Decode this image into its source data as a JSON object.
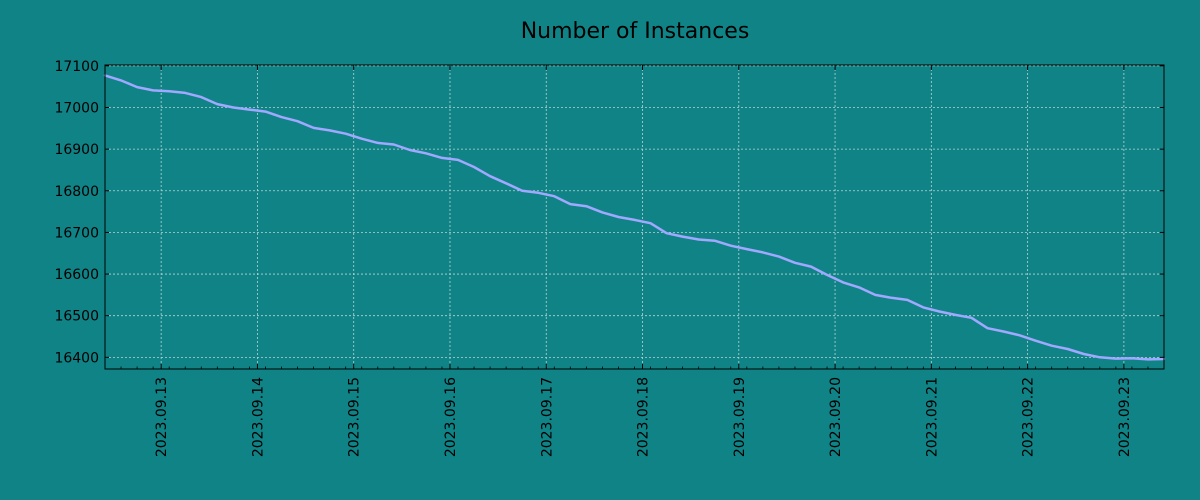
{
  "chart_data": {
    "type": "line",
    "title": "Number of Instances",
    "xlabel": "",
    "ylabel": "",
    "x_ticks": [
      "2023.09.13",
      "2023.09.14",
      "2023.09.15",
      "2023.09.16",
      "2023.09.17",
      "2023.09.18",
      "2023.09.19",
      "2023.09.20",
      "2023.09.21",
      "2023.09.22",
      "2023.09.23"
    ],
    "y_ticks": [
      16400,
      16500,
      16600,
      16700,
      16800,
      16900,
      17000,
      17100
    ],
    "xlim": [
      "2023-09-12 10:00",
      "2023-09-23 10:00"
    ],
    "ylim": [
      16372,
      17102
    ],
    "grid": true,
    "series": [
      {
        "color": "#a0a8ff",
        "x": [
          "2023-09-12 10:00",
          "2023-09-12 14:00",
          "2023-09-12 18:00",
          "2023-09-12 22:00",
          "2023-09-13 02:00",
          "2023-09-13 06:00",
          "2023-09-13 10:00",
          "2023-09-13 14:00",
          "2023-09-13 18:00",
          "2023-09-13 22:00",
          "2023-09-14 02:00",
          "2023-09-14 06:00",
          "2023-09-14 10:00",
          "2023-09-14 14:00",
          "2023-09-14 18:00",
          "2023-09-14 22:00",
          "2023-09-15 02:00",
          "2023-09-15 06:00",
          "2023-09-15 10:00",
          "2023-09-15 14:00",
          "2023-09-15 18:00",
          "2023-09-15 22:00",
          "2023-09-16 02:00",
          "2023-09-16 06:00",
          "2023-09-16 10:00",
          "2023-09-16 14:00",
          "2023-09-16 18:00",
          "2023-09-16 22:00",
          "2023-09-17 02:00",
          "2023-09-17 06:00",
          "2023-09-17 10:00",
          "2023-09-17 14:00",
          "2023-09-17 18:00",
          "2023-09-17 22:00",
          "2023-09-18 02:00",
          "2023-09-18 06:00",
          "2023-09-18 10:00",
          "2023-09-18 14:00",
          "2023-09-18 18:00",
          "2023-09-18 22:00",
          "2023-09-19 02:00",
          "2023-09-19 06:00",
          "2023-09-19 10:00",
          "2023-09-19 14:00",
          "2023-09-19 18:00",
          "2023-09-19 22:00",
          "2023-09-20 02:00",
          "2023-09-20 06:00",
          "2023-09-20 10:00",
          "2023-09-20 14:00",
          "2023-09-20 18:00",
          "2023-09-20 22:00",
          "2023-09-21 02:00",
          "2023-09-21 06:00",
          "2023-09-21 10:00",
          "2023-09-21 14:00",
          "2023-09-21 18:00",
          "2023-09-21 22:00",
          "2023-09-22 02:00",
          "2023-09-22 06:00",
          "2023-09-22 10:00",
          "2023-09-22 14:00",
          "2023-09-22 18:00",
          "2023-09-22 22:00",
          "2023-09-23 02:00",
          "2023-09-23 06:00",
          "2023-09-23 10:00"
        ],
        "values": [
          17077,
          17065,
          17049,
          17041,
          17039,
          17035,
          17025,
          17008,
          17000,
          16995,
          16990,
          16977,
          16967,
          16951,
          16945,
          16937,
          16925,
          16915,
          16911,
          16898,
          16890,
          16879,
          16874,
          16857,
          16835,
          16818,
          16800,
          16795,
          16787,
          16768,
          16763,
          16748,
          16737,
          16730,
          16722,
          16698,
          16690,
          16683,
          16680,
          16668,
          16660,
          16652,
          16642,
          16627,
          16618,
          16598,
          16580,
          16568,
          16550,
          16543,
          16538,
          16520,
          16510,
          16502,
          16495,
          16470,
          16462,
          16453,
          16440,
          16428,
          16420,
          16408,
          16400,
          16397,
          16398,
          16395,
          16396
        ]
      }
    ]
  }
}
